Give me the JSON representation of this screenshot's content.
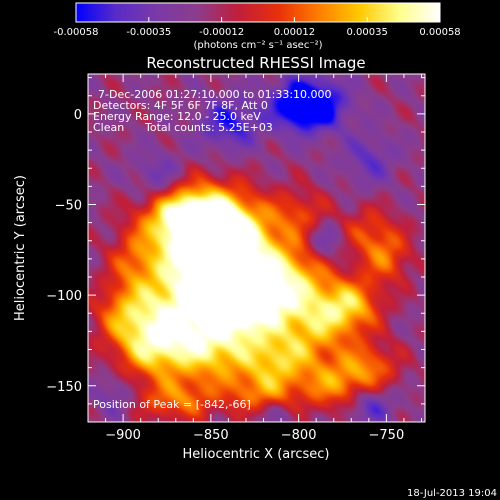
{
  "chart_data": {
    "type": "heatmap",
    "title": "Reconstructed RHESSI Image",
    "xlabel": "Heliocentric X (arcsec)",
    "ylabel": "Heliocentric Y (arcsec)",
    "x_range": [
      -920,
      -728
    ],
    "y_range": [
      -170,
      22
    ],
    "x_ticks": [
      -900,
      -850,
      -800,
      -750
    ],
    "y_ticks": [
      0,
      -50,
      -100,
      -150
    ],
    "colorbar": {
      "label": "(photons cm⁻² s⁻¹ asec⁻²)",
      "range": [
        -0.00058,
        0.00058
      ],
      "ticks": [
        "-0.00058",
        "-0.00035",
        "-0.00012",
        "0.00012",
        "0.00035",
        "0.00058"
      ],
      "colors": [
        "#0000ff",
        "#5a2cc8",
        "#7a3aa6",
        "#8c3c8c",
        "#c01e3c",
        "#e8300a",
        "#ff7d00",
        "#ffc800",
        "#ffff8c",
        "#ffffff"
      ]
    },
    "annotations": {
      "time_range": "7-Dec-2006 01:27:10.000 to 01:33:10.000",
      "detectors": "Detectors: 4F 5F 6F 7F 8F, Att 0",
      "energy": "Energy Range: 12.0 - 25.0 keV",
      "clean": "Clean",
      "total_counts": "Total counts: 5.25E+03",
      "peak": "Position of Peak = [-842,-66]"
    },
    "peak": {
      "x": -842,
      "y": -66
    },
    "blobs": [
      {
        "x": -850,
        "y": -60,
        "sx": 18,
        "sy": 14,
        "a": 1.0
      },
      {
        "x": -868,
        "y": -58,
        "sx": 16,
        "sy": 12,
        "a": 0.7
      },
      {
        "x": -835,
        "y": -75,
        "sx": 16,
        "sy": 15,
        "a": 0.72
      },
      {
        "x": -865,
        "y": -85,
        "sx": 18,
        "sy": 12,
        "a": 0.6
      },
      {
        "x": -870,
        "y": -110,
        "sx": 20,
        "sy": 14,
        "a": 0.7
      },
      {
        "x": -840,
        "y": -100,
        "sx": 16,
        "sy": 12,
        "a": 0.75
      },
      {
        "x": -825,
        "y": -105,
        "sx": 14,
        "sy": 14,
        "a": 0.62
      },
      {
        "x": -850,
        "y": -130,
        "sx": 20,
        "sy": 14,
        "a": 0.7
      },
      {
        "x": -805,
        "y": -90,
        "sx": 16,
        "sy": 14,
        "a": 0.65
      },
      {
        "x": -790,
        "y": -115,
        "sx": 16,
        "sy": 14,
        "a": 0.6
      },
      {
        "x": -770,
        "y": -105,
        "sx": 12,
        "sy": 10,
        "a": 0.55
      },
      {
        "x": -810,
        "y": -135,
        "sx": 14,
        "sy": 10,
        "a": 0.5
      },
      {
        "x": -780,
        "y": -150,
        "sx": 14,
        "sy": 10,
        "a": 0.5
      },
      {
        "x": -760,
        "y": -140,
        "sx": 12,
        "sy": 10,
        "a": 0.45
      },
      {
        "x": -885,
        "y": -130,
        "sx": 14,
        "sy": 12,
        "a": 0.55
      },
      {
        "x": -900,
        "y": -110,
        "sx": 12,
        "sy": 12,
        "a": 0.4
      },
      {
        "x": -820,
        "y": -155,
        "sx": 14,
        "sy": 10,
        "a": 0.5
      },
      {
        "x": -870,
        "y": -158,
        "sx": 16,
        "sy": 8,
        "a": 0.45
      },
      {
        "x": -800,
        "y": -55,
        "sx": 12,
        "sy": 10,
        "a": 0.35
      },
      {
        "x": -760,
        "y": -65,
        "sx": 12,
        "sy": 10,
        "a": 0.35
      },
      {
        "x": -895,
        "y": -80,
        "sx": 10,
        "sy": 12,
        "a": 0.3
      },
      {
        "x": -750,
        "y": -80,
        "sx": 10,
        "sy": 10,
        "a": 0.4
      },
      {
        "x": -795,
        "y": 5,
        "sx": 14,
        "sy": 10,
        "a": -0.9
      },
      {
        "x": -840,
        "y": -5,
        "sx": 12,
        "sy": 10,
        "a": -0.45
      },
      {
        "x": -880,
        "y": -35,
        "sx": 10,
        "sy": 10,
        "a": -0.3
      },
      {
        "x": -760,
        "y": -25,
        "sx": 10,
        "sy": 10,
        "a": -0.3
      },
      {
        "x": -785,
        "y": -70,
        "sx": 8,
        "sy": 8,
        "a": -0.35
      },
      {
        "x": -760,
        "y": -160,
        "sx": 10,
        "sy": 8,
        "a": -0.4
      },
      {
        "x": -905,
        "y": -155,
        "sx": 8,
        "sy": 8,
        "a": -0.25
      },
      {
        "x": -815,
        "y": -165,
        "sx": 10,
        "sy": 6,
        "a": -0.3
      }
    ]
  },
  "footer": {
    "timestamp": "18-Jul-2013 19:04"
  }
}
